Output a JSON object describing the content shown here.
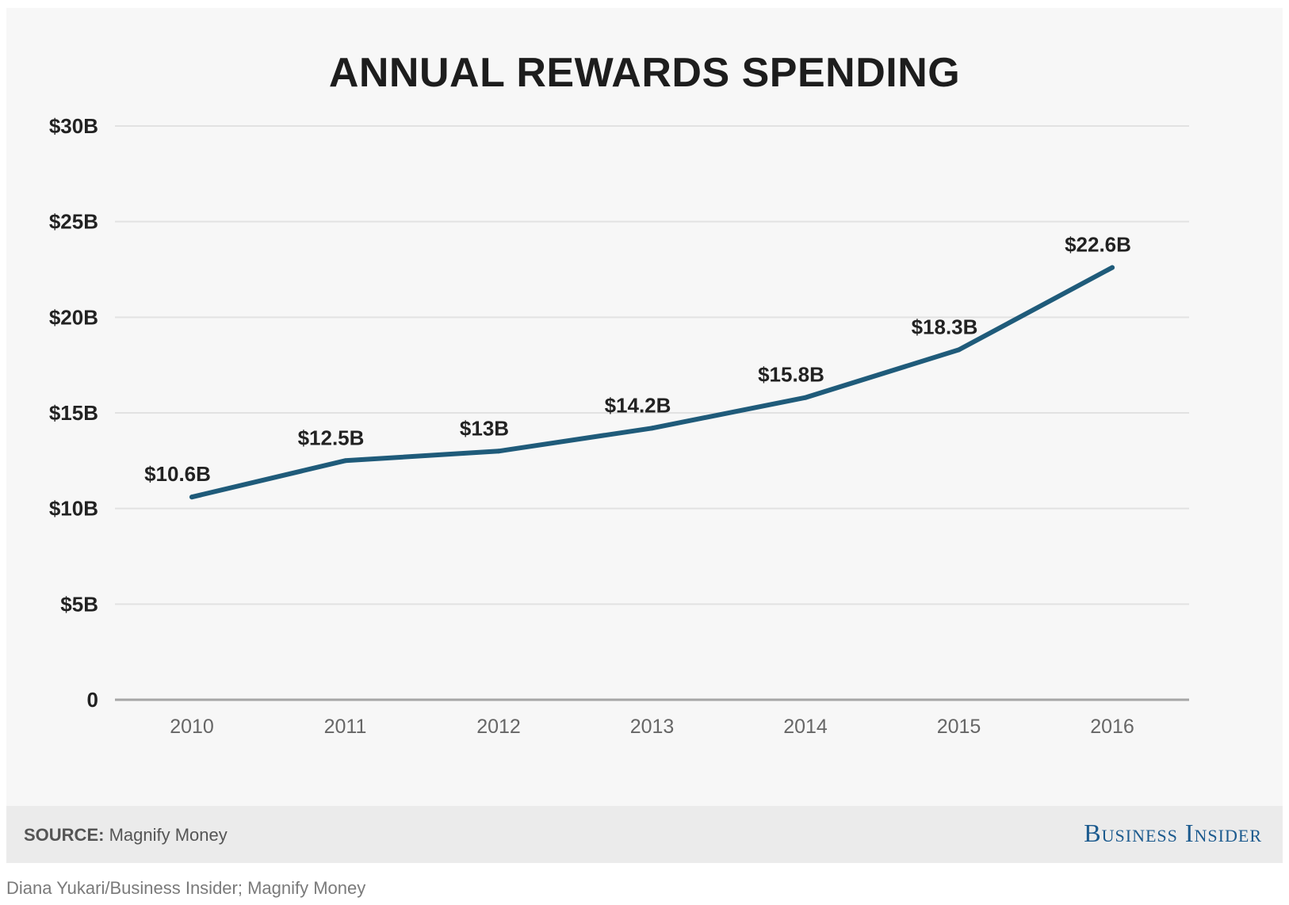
{
  "chart_data": {
    "type": "line",
    "title": "ANNUAL REWARDS SPENDING",
    "xlabel": "",
    "ylabel": "",
    "categories": [
      "2010",
      "2011",
      "2012",
      "2013",
      "2014",
      "2015",
      "2016"
    ],
    "series": [
      {
        "values": [
          10.6,
          12.5,
          13,
          14.2,
          15.8,
          18.3,
          22.6
        ],
        "data_labels": [
          "$10.6B",
          "$12.5B",
          "$13B",
          "$14.2B",
          "$15.8B",
          "$18.3B",
          "$22.6B"
        ]
      }
    ],
    "ylim": [
      0,
      30
    ],
    "yticks": [
      0,
      5,
      10,
      15,
      20,
      25,
      30
    ],
    "ytick_labels": [
      "0",
      "$5B",
      "$10B",
      "$15B",
      "$20B",
      "$25B",
      "$30B"
    ],
    "grid": true,
    "legend": "none",
    "line_color": "#1f5b7a",
    "grid_color": "#e2e2e2",
    "axis_color": "#a6a6a6"
  },
  "footer": {
    "source_label": "SOURCE:",
    "source_text": "Magnify Money",
    "brand": "Business Insider"
  },
  "credit": "Diana Yukari/Business Insider; Magnify Money"
}
